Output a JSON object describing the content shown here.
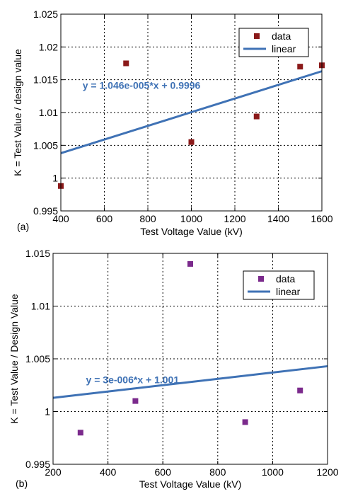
{
  "chart_data": [
    {
      "type": "scatter",
      "panel_label": "(a)",
      "xlabel": "Test Voltage Value (kV)",
      "ylabel": "K = Test Value / design value",
      "xlim": [
        400,
        1600
      ],
      "ylim": [
        0.995,
        1.025
      ],
      "xticks": [
        400,
        600,
        800,
        1000,
        1200,
        1400,
        1600
      ],
      "xtick_labels": [
        "400",
        "600",
        "800",
        "1000",
        "1200",
        "1400",
        "1600"
      ],
      "yticks": [
        0.995,
        1,
        1.005,
        1.01,
        1.015,
        1.02,
        1.025
      ],
      "ytick_labels": [
        "0.995",
        "1",
        "1.005",
        "1.01",
        "1.015",
        "1.02",
        "1.025"
      ],
      "grid": true,
      "legend_position": "top-right",
      "marker_color": "#8b1a1a",
      "line_color": "#3f72b5",
      "series": [
        {
          "name": "data",
          "kind": "points",
          "x": [
            400,
            700,
            1000,
            1300,
            1500,
            1600
          ],
          "y": [
            0.9988,
            1.0175,
            1.0055,
            1.0094,
            1.017,
            1.0172
          ]
        },
        {
          "name": "linear",
          "kind": "line",
          "x": [
            400,
            1600
          ],
          "y": [
            1.0038,
            1.0163
          ]
        }
      ],
      "annotation": {
        "text": "y = 1.046e-005*x + 0.9996",
        "x": 500,
        "y": 1.0136
      }
    },
    {
      "type": "scatter",
      "panel_label": "(b)",
      "xlabel": "Test Voltage Value (kV)",
      "ylabel": "K = Test Value / Design Value",
      "xlim": [
        200,
        1200
      ],
      "ylim": [
        0.995,
        1.015
      ],
      "xticks": [
        200,
        400,
        600,
        800,
        1000,
        1200
      ],
      "xtick_labels": [
        "200",
        "400",
        "600",
        "800",
        "1000",
        "1200"
      ],
      "yticks": [
        0.995,
        1,
        1.005,
        1.01,
        1.015
      ],
      "ytick_labels": [
        "0.995",
        "1",
        "1.005",
        "1.01",
        "1.015"
      ],
      "grid": true,
      "legend_position": "top-right",
      "marker_color": "#7b2a8c",
      "line_color": "#3f72b5",
      "series": [
        {
          "name": "data",
          "kind": "points",
          "x": [
            300,
            500,
            700,
            900,
            1100
          ],
          "y": [
            0.998,
            1.001,
            1.014,
            0.999,
            1.002
          ]
        },
        {
          "name": "linear",
          "kind": "line",
          "x": [
            200,
            1200
          ],
          "y": [
            1.0013,
            1.0043
          ]
        }
      ],
      "annotation": {
        "text": "y = 3e-006*x + 1.001",
        "x": 320,
        "y": 1.0027
      }
    }
  ]
}
